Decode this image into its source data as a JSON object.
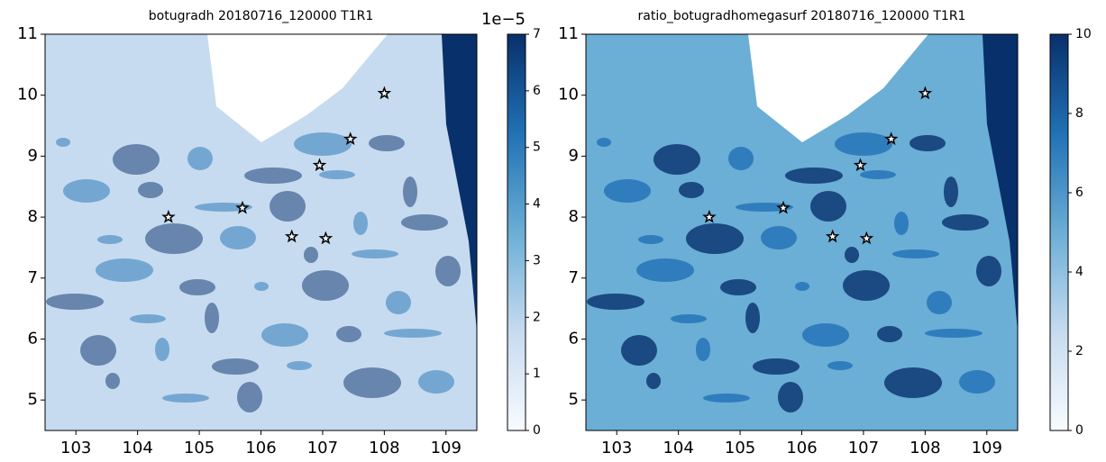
{
  "chart_data": [
    {
      "type": "heatmap",
      "title": "botugradh 20180716_120000 T1R1",
      "xlim": [
        102.5,
        109.5
      ],
      "ylim": [
        4.5,
        11
      ],
      "xticks": [
        103,
        104,
        105,
        106,
        107,
        108,
        109
      ],
      "yticks": [
        5,
        6,
        7,
        8,
        9,
        10,
        11
      ],
      "colorbar": {
        "lim": [
          0,
          7
        ],
        "ticks": [
          0,
          1,
          2,
          3,
          4,
          5,
          6,
          7
        ],
        "offset": "1e−5",
        "colors": [
          "#f7fbff",
          "#c6dbef",
          "#6baed6",
          "#2171b5",
          "#08306b"
        ]
      },
      "points": {
        "x": [
          104.5,
          105.7,
          106.5,
          107.05,
          106.95,
          107.45,
          108.0
        ],
        "y": [
          8.0,
          8.15,
          7.68,
          7.65,
          8.85,
          9.28,
          10.03
        ]
      }
    },
    {
      "type": "heatmap",
      "title": "ratio_botugradhomegasurf 20180716_120000 T1R1",
      "xlim": [
        102.5,
        109.5
      ],
      "ylim": [
        4.5,
        11
      ],
      "xticks": [
        103,
        104,
        105,
        106,
        107,
        108,
        109
      ],
      "yticks": [
        5,
        6,
        7,
        8,
        9,
        10,
        11
      ],
      "colorbar": {
        "lim": [
          0,
          10
        ],
        "ticks": [
          0,
          2,
          4,
          6,
          8,
          10
        ],
        "colors": [
          "#f7fbff",
          "#c6dbef",
          "#6baed6",
          "#2171b5",
          "#08306b"
        ]
      },
      "points": {
        "x": [
          104.5,
          105.7,
          106.5,
          107.05,
          106.95,
          107.45,
          108.0
        ],
        "y": [
          8.0,
          8.15,
          7.68,
          7.65,
          8.85,
          9.28,
          10.03
        ]
      }
    }
  ]
}
